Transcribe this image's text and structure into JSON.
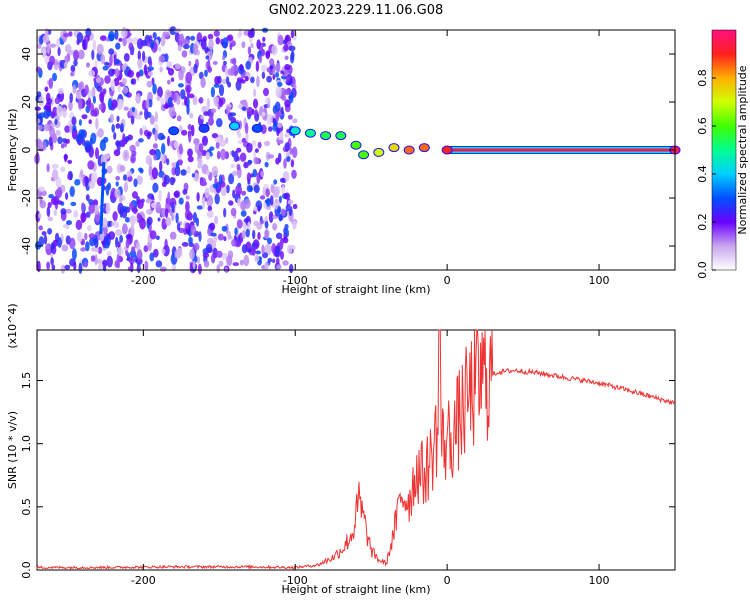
{
  "title": "GN02.2023.229.11.06.G08",
  "colors": {
    "snr_line": "#ee3333",
    "background": "#ffffff",
    "axis": "#000000"
  },
  "chart_data": [
    {
      "type": "heatmap",
      "xlabel": "Height of straight line (km)",
      "ylabel": "Frequency (Hz)",
      "xlim": [
        -270,
        150
      ],
      "ylim": [
        -50,
        50
      ],
      "x_ticks": [
        -200,
        -100,
        0,
        100
      ],
      "x_tick_labels": [
        "-200",
        "-100",
        "0",
        "100"
      ],
      "y_ticks": [
        -40,
        -20,
        0,
        20,
        40
      ],
      "y_tick_labels": [
        "-40",
        "-20",
        "0",
        "20",
        "40"
      ],
      "colorbar": {
        "label": "Normalized spectral amplitude",
        "range": [
          0,
          1
        ],
        "ticks": [
          0.0,
          0.2,
          0.4,
          0.6,
          0.8
        ],
        "tick_labels": [
          "0.0",
          "0.2",
          "0.4",
          "0.6",
          "0.8"
        ],
        "colormap": "rainbow (white-purple-blue-cyan-green-yellow-red-magenta)"
      },
      "features": {
        "noise_region_x": [
          -270,
          -100
        ],
        "noise_amplitude_range": [
          0.05,
          0.3
        ],
        "ridge_points": [
          {
            "x": -180,
            "y": 8,
            "amp": 0.3
          },
          {
            "x": -160,
            "y": 9,
            "amp": 0.28
          },
          {
            "x": -140,
            "y": 10,
            "amp": 0.4
          },
          {
            "x": -125,
            "y": 9,
            "amp": 0.3
          },
          {
            "x": -100,
            "y": 8,
            "amp": 0.45
          },
          {
            "x": -90,
            "y": 7,
            "amp": 0.5
          },
          {
            "x": -80,
            "y": 6,
            "amp": 0.55
          },
          {
            "x": -70,
            "y": 6,
            "amp": 0.55
          },
          {
            "x": -60,
            "y": 2,
            "amp": 0.6
          },
          {
            "x": -55,
            "y": -2,
            "amp": 0.6
          },
          {
            "x": -45,
            "y": -1,
            "amp": 0.7
          },
          {
            "x": -35,
            "y": 1,
            "amp": 0.75
          },
          {
            "x": -25,
            "y": 0,
            "amp": 0.85
          },
          {
            "x": -15,
            "y": 1,
            "amp": 0.85
          },
          {
            "x": 0,
            "y": 0,
            "amp": 0.9
          },
          {
            "x": 150,
            "y": 0,
            "amp": 0.95
          }
        ],
        "constant_line_x": [
          0,
          150
        ],
        "constant_line_y": 0,
        "vertical_streak": {
          "x": -228,
          "y_range": [
            -35,
            -5
          ],
          "amp": 0.3
        }
      }
    },
    {
      "type": "line",
      "xlabel": "Height of straight line (km)",
      "ylabel": "SNR (10 * v/v)",
      "y_multiplier_label": "(x10^4)",
      "xlim": [
        -270,
        150
      ],
      "ylim": [
        0,
        1.9
      ],
      "x_ticks": [
        -200,
        -100,
        0,
        100
      ],
      "x_tick_labels": [
        "-200",
        "-100",
        "0",
        "100"
      ],
      "y_ticks": [
        0.0,
        0.5,
        1.0,
        1.5
      ],
      "y_tick_labels": [
        "0.0",
        "0.5",
        "1.0",
        "1.5"
      ],
      "series": [
        {
          "points": [
            [
              -270,
              0.02
            ],
            [
              -230,
              0.02
            ],
            [
              -180,
              0.025
            ],
            [
              -130,
              0.025
            ],
            [
              -100,
              0.02
            ],
            [
              -85,
              0.04
            ],
            [
              -75,
              0.1
            ],
            [
              -68,
              0.18
            ],
            [
              -62,
              0.3
            ],
            [
              -58,
              0.55
            ],
            [
              -55,
              0.4
            ],
            [
              -50,
              0.15
            ],
            [
              -45,
              0.08
            ],
            [
              -40,
              0.05
            ],
            [
              -35,
              0.3
            ],
            [
              -30,
              0.6
            ],
            [
              -25,
              0.55
            ],
            [
              -20,
              0.8
            ],
            [
              -15,
              0.75
            ],
            [
              -10,
              0.9
            ],
            [
              -7,
              1.1
            ],
            [
              -4,
              1.0
            ],
            [
              -2,
              1.0
            ],
            [
              5,
              1.1
            ],
            [
              10,
              1.25
            ],
            [
              15,
              1.38
            ],
            [
              20,
              1.48
            ],
            [
              25,
              1.53
            ],
            [
              35,
              1.57
            ],
            [
              45,
              1.58
            ],
            [
              60,
              1.56
            ],
            [
              80,
              1.52
            ],
            [
              100,
              1.48
            ],
            [
              120,
              1.42
            ],
            [
              135,
              1.37
            ],
            [
              150,
              1.32
            ]
          ]
        }
      ]
    }
  ]
}
